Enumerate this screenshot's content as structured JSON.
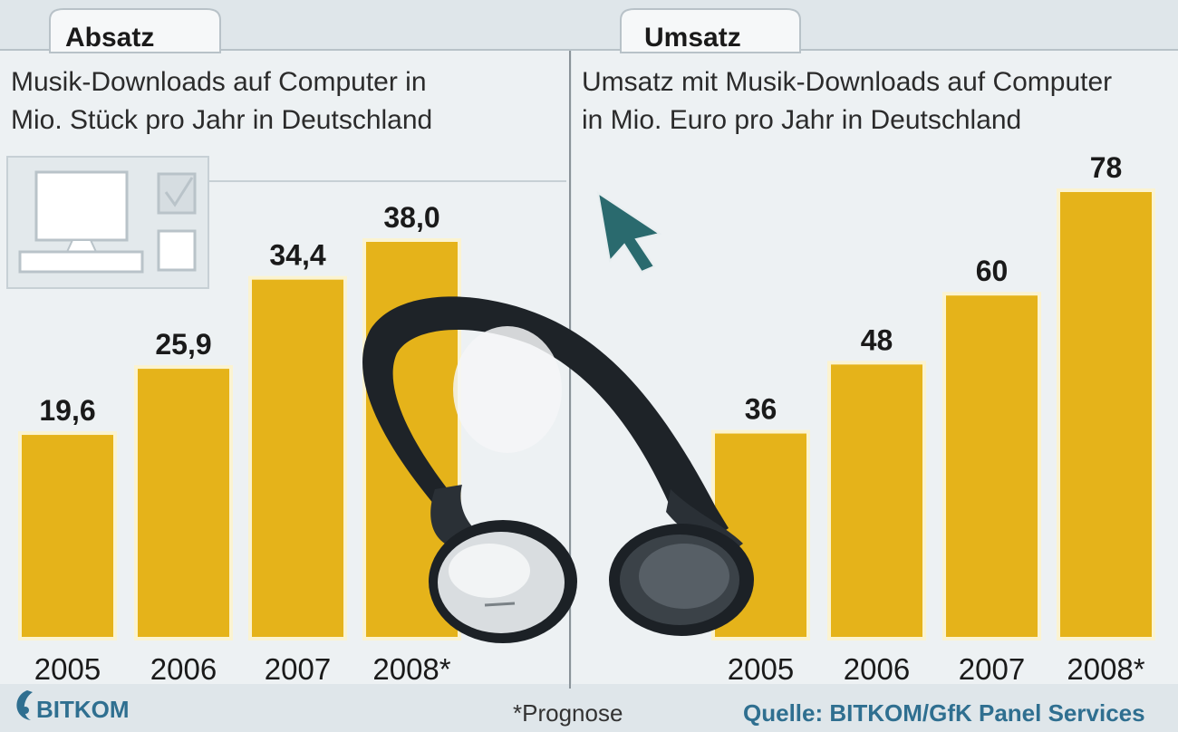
{
  "colors": {
    "bar": "#e5b31a",
    "bar_edge": "#fbf3d0",
    "panel": "#edf1f3",
    "background": "#dfe6ea",
    "accent": "#2f6f90",
    "cursor": "#2a6a6e"
  },
  "icons": [
    "computer-icon",
    "checkbox-checked-icon",
    "checkbox-empty-icon",
    "cursor-arrow-icon",
    "headphones-image",
    "bitkom-logo"
  ],
  "chart_data": [
    {
      "type": "bar",
      "tab": "Absatz",
      "title_line1": "Musik-Downloads auf Computer in",
      "title_line2": "Mio. Stück pro Jahr in Deutschland",
      "categories": [
        "2005",
        "2006",
        "2007",
        "2008*"
      ],
      "values": [
        19.6,
        25.9,
        34.4,
        38.0
      ],
      "value_labels": [
        "19,6",
        "25,9",
        "34,4",
        "38,0"
      ],
      "ylim": [
        0,
        38.0
      ],
      "grid": false,
      "legend": "none"
    },
    {
      "type": "bar",
      "tab": "Umsatz",
      "title_line1": "Umsatz mit Musik-Downloads auf Computer",
      "title_line2": "in Mio. Euro pro Jahr in Deutschland",
      "categories": [
        "2005",
        "2006",
        "2007",
        "2008*"
      ],
      "values": [
        36,
        48,
        60,
        78
      ],
      "value_labels": [
        "36",
        "48",
        "60",
        "78"
      ],
      "ylim": [
        0,
        78
      ],
      "grid": false,
      "legend": "none"
    }
  ],
  "footer": {
    "logo_text": "BITKOM",
    "note": "*Prognose",
    "source": "Quelle: BITKOM/GfK Panel Services"
  }
}
